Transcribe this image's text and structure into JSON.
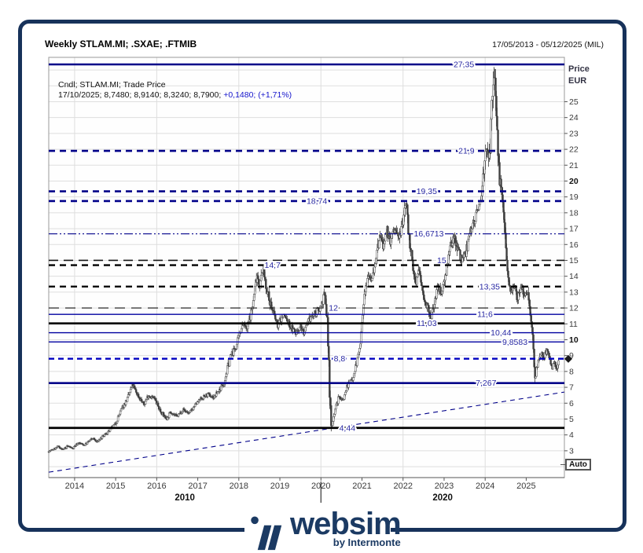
{
  "window": {
    "title": "Weekly STLAM.MI; .SXAE; .FTMIB",
    "date_range": "17/05/2013 - 05/12/2025 (MIL)"
  },
  "legend": {
    "line1": "Cndl; STLAM.MI; Trade Price",
    "line2_prefix": "17/10/2025; 8,7480; 8,9140; 8,3240; 8,7900; ",
    "line2_change": "+0,1480; (+1,71%)"
  },
  "axis": {
    "price_label_1": "Price",
    "price_label_2": "EUR",
    "auto_label": "Auto"
  },
  "logo": {
    "text": "websim",
    "subtext": "by Intermonte"
  },
  "colors": {
    "frame_navy": "#17325a",
    "logo_navy": "#1b3a63",
    "line_navy": "#000089",
    "line_blue": "#0000a0",
    "line_blue_dash": "#0000c0",
    "label_blue": "#2929a3",
    "change_blue": "#1414cc",
    "black": "#000000",
    "grid": "#dedede",
    "plot_border": "#9a9a9a",
    "candle": "#3f3f3f",
    "tick_text": "#3a3a3a"
  },
  "chart_data": {
    "type": "candlestick",
    "title": "Weekly STLAM.MI; .SXAE; .FTMIB",
    "xlabel": "",
    "ylabel": "Price EUR",
    "x_range": [
      2013.37,
      2025.93
    ],
    "ylim": [
      1.3,
      27.8
    ],
    "grid": "on",
    "x_ticks": [
      2014,
      2015,
      2016,
      2017,
      2018,
      2019,
      2020,
      2021,
      2022,
      2023,
      2024,
      2025
    ],
    "v_grid_years": [
      2014,
      2016,
      2018,
      2020,
      2022,
      2024
    ],
    "decade_labels": [
      {
        "label": "2010",
        "span": [
          2013.37,
          2020
        ]
      },
      {
        "label": "2020",
        "span": [
          2020,
          2025.93
        ]
      }
    ],
    "decade_separator_year": 2020,
    "y_ticks": [
      3,
      4,
      5,
      6,
      7,
      8,
      9,
      10,
      11,
      12,
      13,
      14,
      15,
      16,
      17,
      18,
      19,
      20,
      21,
      22,
      23,
      24,
      25
    ],
    "y_bold_ticks": [
      10,
      20
    ],
    "last_price": 8.79,
    "last_date": "17/10/2025",
    "levels": [
      {
        "value": 27.35,
        "label": "27,35",
        "style": "navy_solid",
        "label_pos": 0.805
      },
      {
        "value": 21.9,
        "label": "21,9",
        "style": "navy_dash",
        "label_pos": 0.81
      },
      {
        "value": 19.35,
        "label": "19,35",
        "style": "navy_dash",
        "label_pos": 0.733
      },
      {
        "value": 18.74,
        "label": "18,74",
        "style": "navy_dash",
        "label_pos": 0.52
      },
      {
        "value": 16.6713,
        "label": "16,6713",
        "style": "navy_dashdot",
        "label_pos": 0.737
      },
      {
        "value": 15,
        "label": "15",
        "style": "black_longdash",
        "label_pos": 0.762
      },
      {
        "value": 14.7,
        "label": "14,7",
        "style": "black_dash",
        "label_pos": 0.434
      },
      {
        "value": 13.35,
        "label": "13,35",
        "style": "black_dash",
        "label_pos": 0.855
      },
      {
        "value": 12,
        "label": "12",
        "style": "black_longdash_thin",
        "label_pos": 0.552
      },
      {
        "value": 11.6,
        "label": "11,6",
        "style": "blue_thin",
        "label_pos": 0.846
      },
      {
        "value": 11.03,
        "label": "11,03",
        "style": "black_solid",
        "label_pos": 0.733
      },
      {
        "value": 10.44,
        "label": "10,44",
        "style": "blue_thin",
        "label_pos": 0.877
      },
      {
        "value": 9.8583,
        "label": "9,8583",
        "style": "blue_thin",
        "label_pos": 0.904
      },
      {
        "value": 8.8,
        "label": "8,8",
        "style": "blue_dash",
        "label_pos": 0.564
      },
      {
        "value": 7.267,
        "label": "7,267",
        "style": "navy_solid",
        "label_pos": 0.848
      },
      {
        "value": 4.44,
        "label": "4,44",
        "style": "black_solid",
        "label_pos": 0.579
      }
    ],
    "trendline": {
      "t1": 2013.37,
      "p1": 1.65,
      "t2": 2025.93,
      "p2": 6.7,
      "style": "navy_thin_dash"
    },
    "anchors": [
      [
        2013.37,
        2.95
      ],
      [
        2013.5,
        3.1
      ],
      [
        2013.62,
        3.28
      ],
      [
        2013.72,
        3.05
      ],
      [
        2013.85,
        3.3
      ],
      [
        2013.95,
        3.15
      ],
      [
        2014.1,
        3.5
      ],
      [
        2014.25,
        3.35
      ],
      [
        2014.45,
        3.8
      ],
      [
        2014.55,
        3.55
      ],
      [
        2014.7,
        3.9
      ],
      [
        2014.85,
        4.25
      ],
      [
        2015.0,
        4.7
      ],
      [
        2015.15,
        5.6
      ],
      [
        2015.3,
        6.3
      ],
      [
        2015.42,
        7.15
      ],
      [
        2015.55,
        6.5
      ],
      [
        2015.7,
        5.9
      ],
      [
        2015.8,
        6.5
      ],
      [
        2015.95,
        6.3
      ],
      [
        2016.1,
        5.5
      ],
      [
        2016.25,
        5.0
      ],
      [
        2016.35,
        5.45
      ],
      [
        2016.5,
        5.15
      ],
      [
        2016.65,
        5.6
      ],
      [
        2016.8,
        5.35
      ],
      [
        2016.95,
        5.9
      ],
      [
        2017.1,
        6.3
      ],
      [
        2017.25,
        6.55
      ],
      [
        2017.4,
        6.35
      ],
      [
        2017.55,
        6.9
      ],
      [
        2017.65,
        7.3
      ],
      [
        2017.8,
        8.9
      ],
      [
        2017.95,
        9.6
      ],
      [
        2018.1,
        11.1
      ],
      [
        2018.2,
        10.6
      ],
      [
        2018.35,
        12.2
      ],
      [
        2018.45,
        14.2
      ],
      [
        2018.52,
        13.4
      ],
      [
        2018.6,
        14.55
      ],
      [
        2018.7,
        13.0
      ],
      [
        2018.8,
        12.1
      ],
      [
        2018.95,
        10.9
      ],
      [
        2019.1,
        11.6
      ],
      [
        2019.25,
        10.9
      ],
      [
        2019.4,
        10.4
      ],
      [
        2019.5,
        10.9
      ],
      [
        2019.6,
        10.4
      ],
      [
        2019.75,
        11.4
      ],
      [
        2019.9,
        11.7
      ],
      [
        2020.0,
        12.1
      ],
      [
        2020.1,
        12.9
      ],
      [
        2020.17,
        11.0
      ],
      [
        2020.22,
        6.5
      ],
      [
        2020.27,
        4.55
      ],
      [
        2020.35,
        5.6
      ],
      [
        2020.45,
        6.4
      ],
      [
        2020.55,
        6.2
      ],
      [
        2020.65,
        7.1
      ],
      [
        2020.78,
        7.6
      ],
      [
        2020.9,
        8.8
      ],
      [
        2020.97,
        9.8
      ],
      [
        2021.05,
        12.2
      ],
      [
        2021.15,
        14.3
      ],
      [
        2021.25,
        13.9
      ],
      [
        2021.35,
        15.2
      ],
      [
        2021.45,
        16.5
      ],
      [
        2021.55,
        15.8
      ],
      [
        2021.62,
        16.8
      ],
      [
        2021.7,
        16.2
      ],
      [
        2021.8,
        17.0
      ],
      [
        2021.9,
        16.4
      ],
      [
        2022.0,
        17.3
      ],
      [
        2022.07,
        18.9
      ],
      [
        2022.15,
        16.8
      ],
      [
        2022.25,
        14.3
      ],
      [
        2022.32,
        13.6
      ],
      [
        2022.4,
        14.4
      ],
      [
        2022.5,
        12.8
      ],
      [
        2022.6,
        12.1
      ],
      [
        2022.68,
        11.15
      ],
      [
        2022.78,
        12.5
      ],
      [
        2022.85,
        13.3
      ],
      [
        2022.95,
        13.0
      ],
      [
        2023.05,
        14.3
      ],
      [
        2023.15,
        15.6
      ],
      [
        2023.25,
        16.6
      ],
      [
        2023.35,
        15.7
      ],
      [
        2023.45,
        14.9
      ],
      [
        2023.55,
        15.6
      ],
      [
        2023.65,
        16.9
      ],
      [
        2023.75,
        17.6
      ],
      [
        2023.85,
        18.2
      ],
      [
        2023.95,
        20.0
      ],
      [
        2024.03,
        22.4
      ],
      [
        2024.1,
        20.8
      ],
      [
        2024.17,
        24.5
      ],
      [
        2024.23,
        27.1
      ],
      [
        2024.3,
        23.5
      ],
      [
        2024.37,
        19.8
      ],
      [
        2024.45,
        18.2
      ],
      [
        2024.5,
        16.0
      ],
      [
        2024.57,
        14.0
      ],
      [
        2024.65,
        13.1
      ],
      [
        2024.72,
        13.6
      ],
      [
        2024.8,
        12.6
      ],
      [
        2024.87,
        13.4
      ],
      [
        2024.95,
        12.9
      ],
      [
        2025.03,
        13.1
      ],
      [
        2025.1,
        12.2
      ],
      [
        2025.17,
        9.8
      ],
      [
        2025.23,
        7.7
      ],
      [
        2025.3,
        8.6
      ],
      [
        2025.37,
        9.3
      ],
      [
        2025.45,
        8.7
      ],
      [
        2025.5,
        9.4
      ],
      [
        2025.57,
        8.8
      ],
      [
        2025.63,
        8.2
      ],
      [
        2025.7,
        8.5
      ],
      [
        2025.77,
        8.1
      ],
      [
        2025.79,
        8.79
      ]
    ]
  }
}
